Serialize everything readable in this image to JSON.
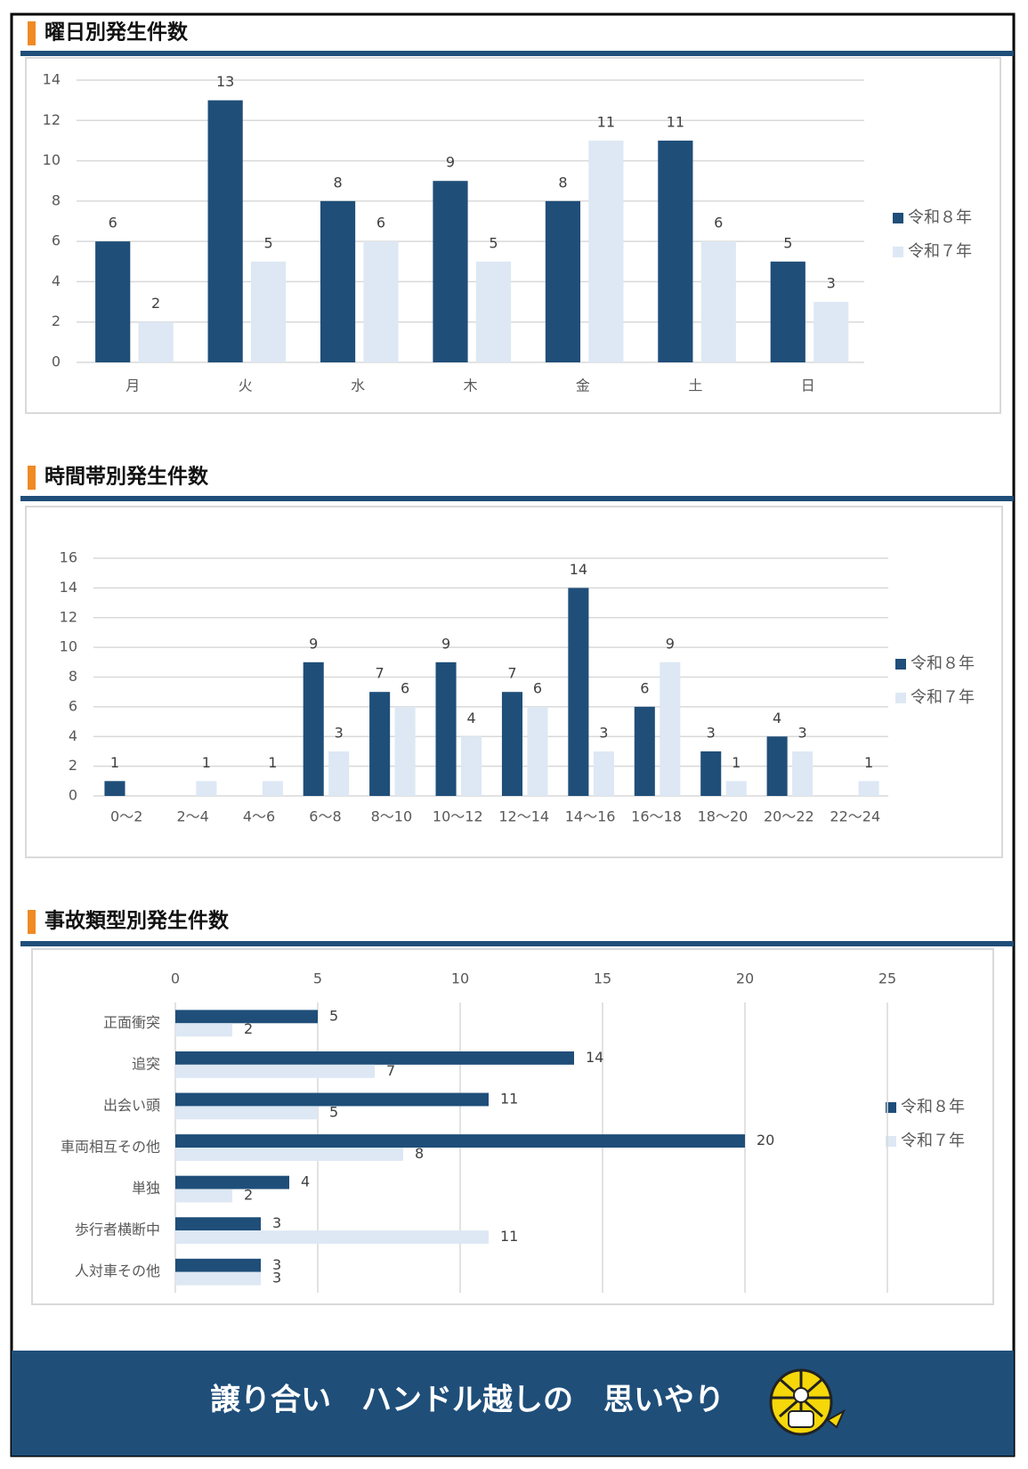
{
  "chart_data": [
    {
      "type": "bar",
      "title": "曜日別発生件数",
      "categories": [
        "月",
        "火",
        "水",
        "木",
        "金",
        "土",
        "日"
      ],
      "series": [
        {
          "name": "令和８年",
          "color": "#1f4e79",
          "values": [
            6,
            13,
            8,
            9,
            8,
            11,
            5
          ]
        },
        {
          "name": "令和７年",
          "color": "#dde8f4",
          "values": [
            2,
            5,
            6,
            5,
            11,
            6,
            3
          ]
        }
      ],
      "ylim": [
        0,
        14
      ],
      "yticks": [
        0,
        2,
        4,
        6,
        8,
        10,
        12,
        14
      ],
      "grid": true,
      "legend": "right"
    },
    {
      "type": "bar",
      "title": "時間帯別発生件数",
      "categories": [
        "0～2",
        "2～4",
        "4～6",
        "6～8",
        "8～10",
        "10～12",
        "12～14",
        "14～16",
        "16～18",
        "18～20",
        "20～22",
        "22～24"
      ],
      "series": [
        {
          "name": "令和８年",
          "color": "#1f4e79",
          "values": [
            1,
            0,
            0,
            9,
            7,
            9,
            7,
            14,
            6,
            3,
            4,
            0
          ]
        },
        {
          "name": "令和７年",
          "color": "#dde8f4",
          "values": [
            0,
            1,
            1,
            3,
            6,
            4,
            6,
            3,
            9,
            1,
            3,
            1
          ]
        }
      ],
      "ylim": [
        0,
        16
      ],
      "yticks": [
        0,
        2,
        4,
        6,
        8,
        10,
        12,
        14,
        16
      ],
      "grid": true,
      "legend": "right"
    },
    {
      "type": "hbar",
      "title": "事故類型別発生件数",
      "categories": [
        "正面衝突",
        "追突",
        "出会い頭",
        "車両相互その他",
        "単独",
        "歩行者横断中",
        "人対車その他"
      ],
      "series": [
        {
          "name": "令和８年",
          "color": "#1f4e79",
          "values": [
            5,
            14,
            11,
            20,
            4,
            3,
            3
          ]
        },
        {
          "name": "令和７年",
          "color": "#dde8f4",
          "values": [
            2,
            7,
            5,
            8,
            2,
            11,
            3
          ]
        }
      ],
      "xlim": [
        0,
        25
      ],
      "xticks": [
        0,
        5,
        10,
        15,
        20,
        25
      ],
      "grid": true,
      "legend": "right"
    }
  ],
  "footer": {
    "slogan": "譲り合い　ハンドル越しの　思いやり"
  }
}
